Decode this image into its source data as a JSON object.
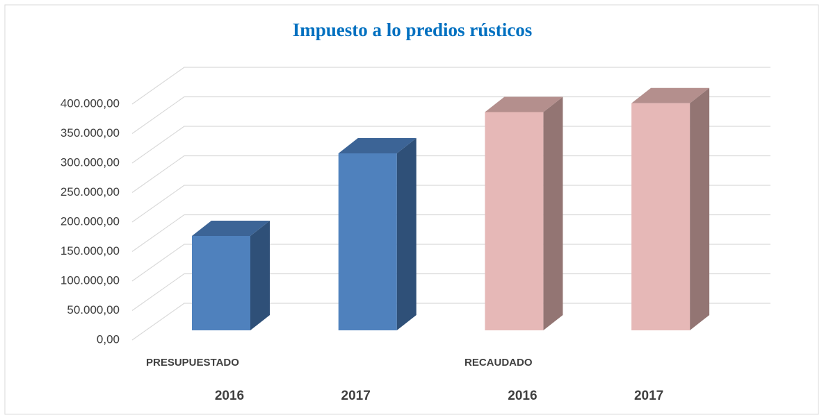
{
  "chart_data": {
    "type": "bar3d",
    "title": "Impuesto a lo predios rústicos",
    "groups": [
      {
        "name": "PRESUPUESTADO",
        "color": "#4f81bd",
        "top_color": "#3c6496",
        "side_color": "#2f5078",
        "categories": [
          "2016",
          "2017"
        ],
        "values": [
          160000,
          300000
        ]
      },
      {
        "name": "RECAUDADO",
        "color": "#e6b8b7",
        "top_color": "#b48f8d",
        "side_color": "#937573",
        "categories": [
          "2016",
          "2017"
        ],
        "values": [
          370000,
          385000
        ]
      }
    ],
    "ylim": [
      0,
      400000
    ],
    "yticks": [
      {
        "value": 0,
        "label": "0,00"
      },
      {
        "value": 50000,
        "label": "50.000,00"
      },
      {
        "value": 100000,
        "label": "100.000,00"
      },
      {
        "value": 150000,
        "label": "150.000,00"
      },
      {
        "value": 200000,
        "label": "200.000,00"
      },
      {
        "value": 250000,
        "label": "250.000,00"
      },
      {
        "value": 300000,
        "label": "300.000,00"
      },
      {
        "value": 350000,
        "label": "350.000,00"
      },
      {
        "value": 400000,
        "label": "400.000,00"
      }
    ],
    "grid": true
  }
}
